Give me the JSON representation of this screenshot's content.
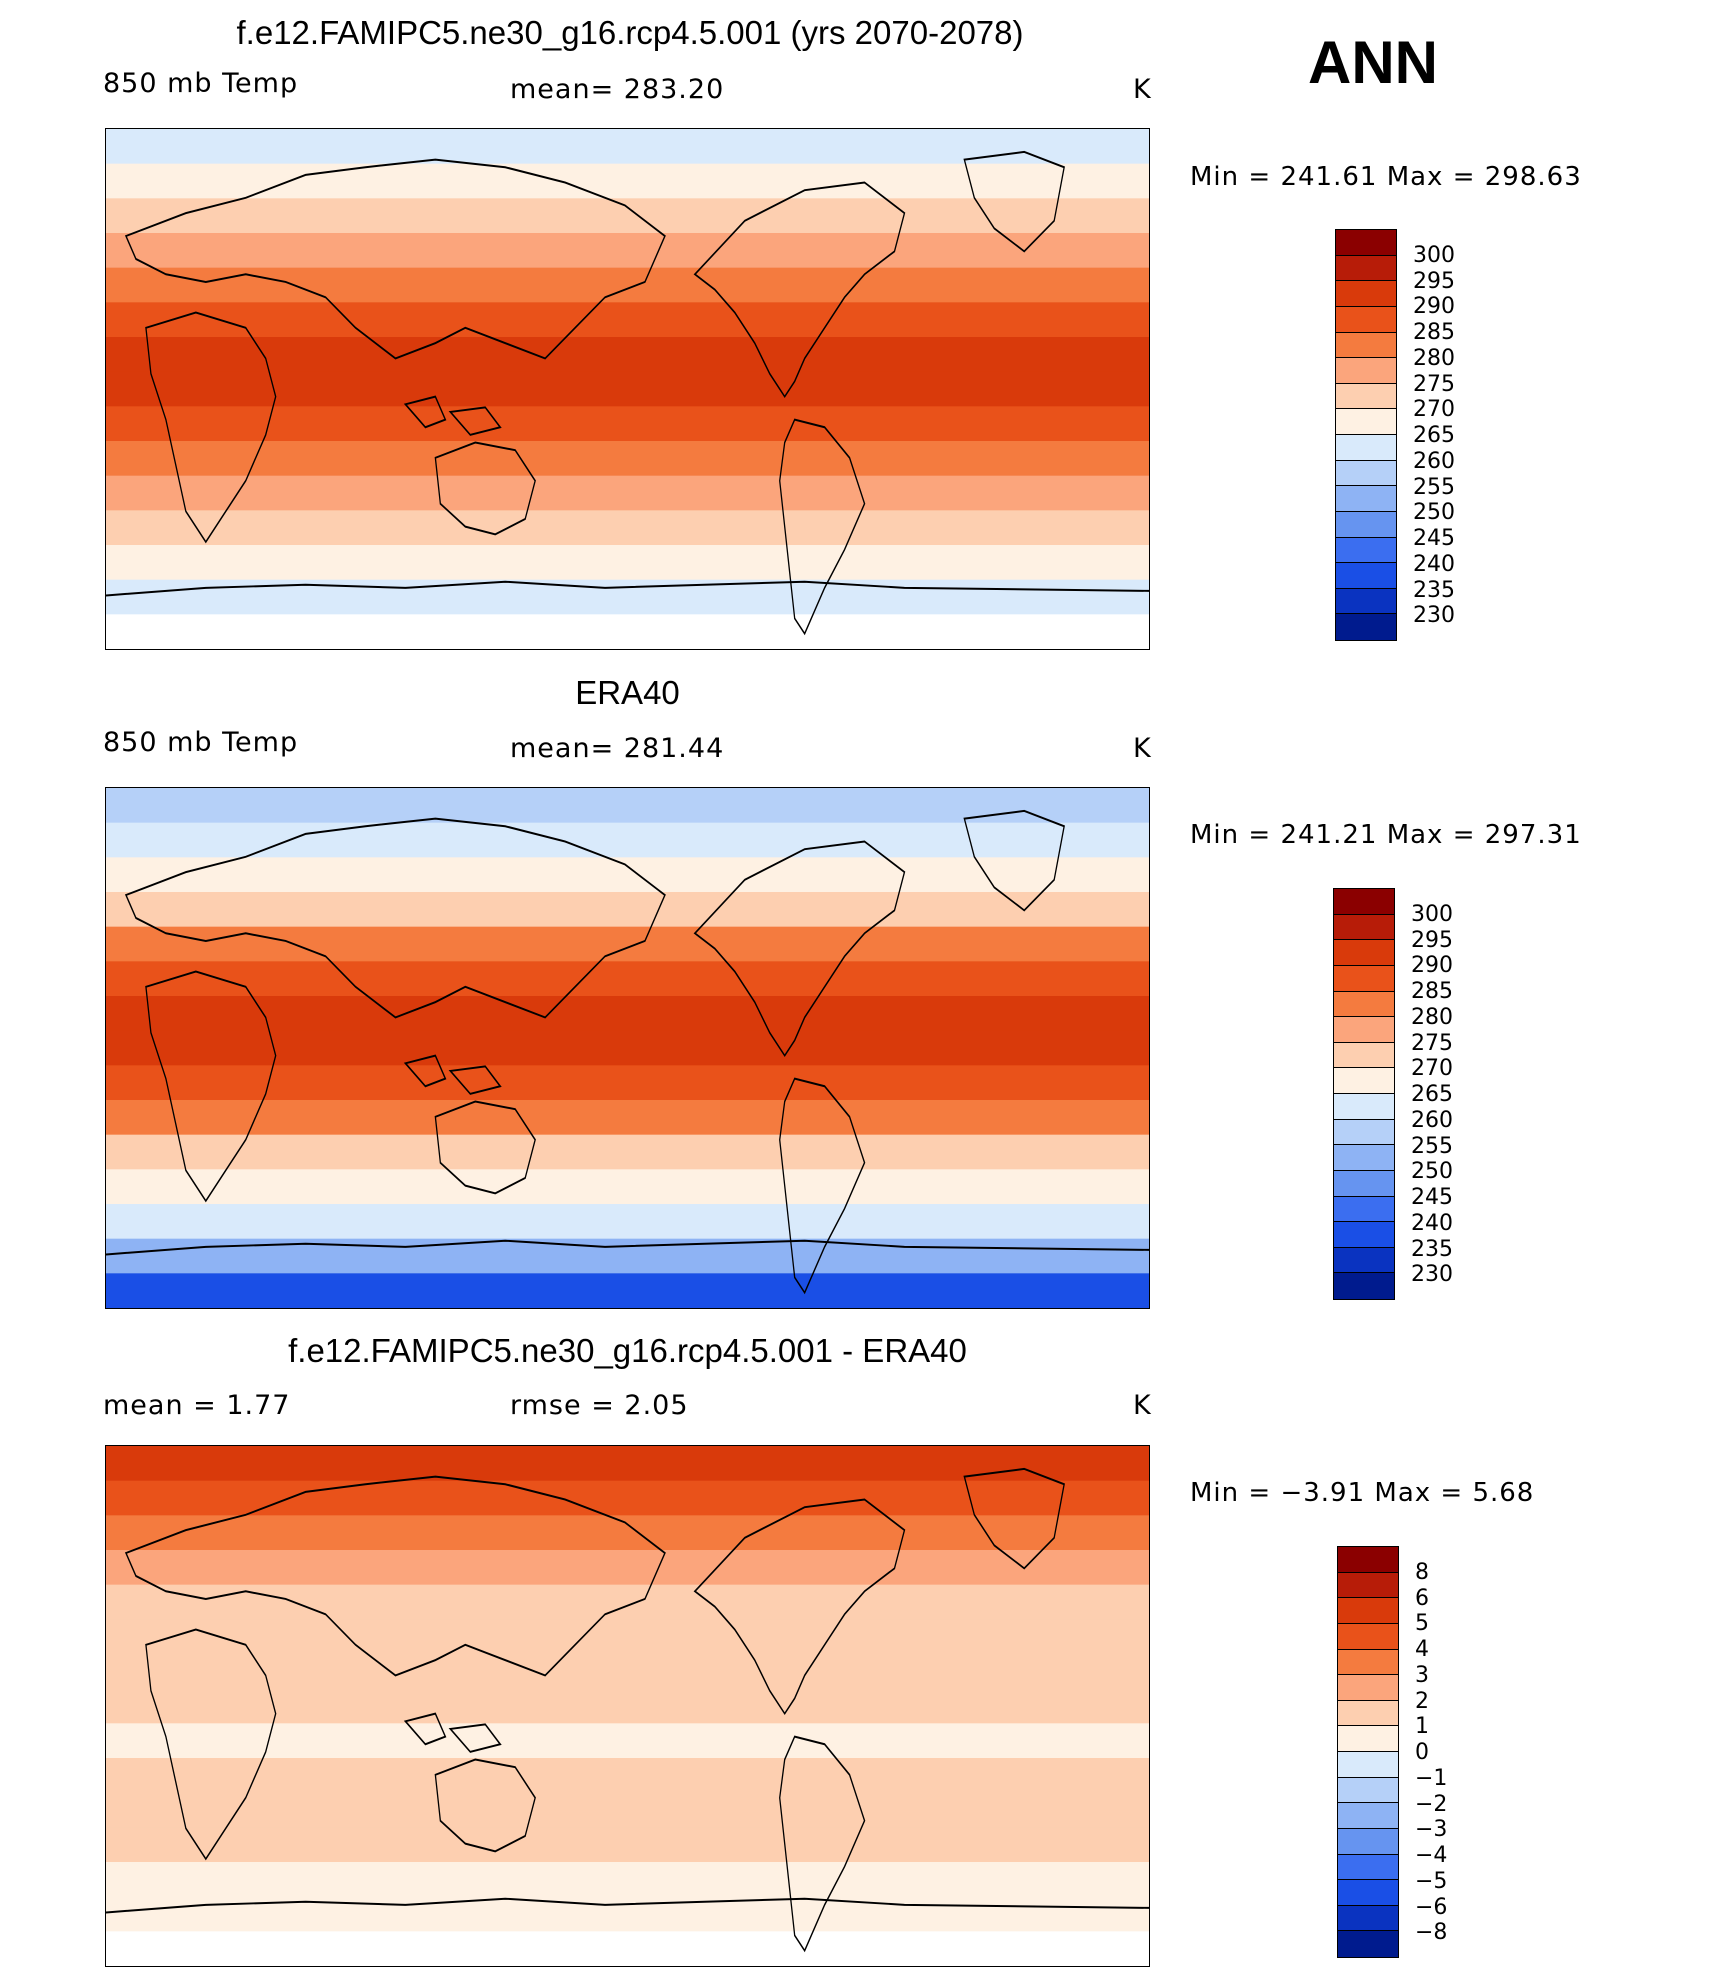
{
  "header": {
    "season": "ANN"
  },
  "panels": [
    {
      "title": "f.e12.FAMIPC5.ne30_g16.rcp4.5.001 (yrs 2070-2078)",
      "left_label": "850 mb Temp",
      "center_label": "mean=  283.20",
      "units": "K",
      "minmax": "Min  =  241.61  Max  =  298.63",
      "colorbar": {
        "colors": [
          "#8b0000",
          "#b71c08",
          "#d93a0b",
          "#e9521a",
          "#f47b3f",
          "#fba57c",
          "#fdcfb0",
          "#fef1e3",
          "#d9eafb",
          "#b5d0f8",
          "#8eb3f4",
          "#6694f0",
          "#3b6ef0",
          "#1a4fe6",
          "#0a33c0",
          "#001b8e"
        ],
        "ticks": [
          "300",
          "295",
          "290",
          "285",
          "280",
          "275",
          "270",
          "265",
          "260",
          "255",
          "250",
          "245",
          "240",
          "235",
          "230"
        ]
      },
      "bands": [
        "#d9eafb",
        "#fef1e3",
        "#fdcfb0",
        "#fba57c",
        "#f47b3f",
        "#e9521a",
        "#d93a0b",
        "#d93a0b",
        "#e9521a",
        "#f47b3f",
        "#fba57c",
        "#fdcfb0",
        "#fef1e3",
        "#d9eafb",
        "#ffffff"
      ]
    },
    {
      "title": "ERA40",
      "left_label": "850 mb Temp",
      "center_label": "mean=  281.44",
      "units": "K",
      "minmax": "Min  =  241.21  Max  =  297.31",
      "colorbar": {
        "colors": [
          "#8b0000",
          "#b71c08",
          "#d93a0b",
          "#e9521a",
          "#f47b3f",
          "#fba57c",
          "#fdcfb0",
          "#fef1e3",
          "#d9eafb",
          "#b5d0f8",
          "#8eb3f4",
          "#6694f0",
          "#3b6ef0",
          "#1a4fe6",
          "#0a33c0",
          "#001b8e"
        ],
        "ticks": [
          "300",
          "295",
          "290",
          "285",
          "280",
          "275",
          "270",
          "265",
          "260",
          "255",
          "250",
          "245",
          "240",
          "235",
          "230"
        ]
      },
      "bands": [
        "#b5d0f8",
        "#d9eafb",
        "#fef1e3",
        "#fdcfb0",
        "#f47b3f",
        "#e9521a",
        "#d93a0b",
        "#d93a0b",
        "#e9521a",
        "#f47b3f",
        "#fdcfb0",
        "#fef1e3",
        "#d9eafb",
        "#8eb3f4",
        "#1a4fe6"
      ]
    },
    {
      "title": "f.e12.FAMIPC5.ne30_g16.rcp4.5.001 - ERA40",
      "left_label": "mean  =      1.77",
      "center_label": "rmse  =     2.05",
      "units": "K",
      "minmax": "Min  =   −3.91  Max  =      5.68",
      "colorbar": {
        "colors": [
          "#8b0000",
          "#b71c08",
          "#d93a0b",
          "#e9521a",
          "#f47b3f",
          "#fba57c",
          "#fdcfb0",
          "#fef1e3",
          "#d9eafb",
          "#b5d0f8",
          "#8eb3f4",
          "#6694f0",
          "#3b6ef0",
          "#1a4fe6",
          "#0a33c0",
          "#001b8e"
        ],
        "ticks": [
          "8",
          "6",
          "5",
          "4",
          "3",
          "2",
          "1",
          "0",
          "−1",
          "−2",
          "−3",
          "−4",
          "−5",
          "−6",
          "−8"
        ]
      },
      "bands": [
        "#d93a0b",
        "#e9521a",
        "#f47b3f",
        "#fba57c",
        "#fdcfb0",
        "#fdcfb0",
        "#fdcfb0",
        "#fdcfb0",
        "#fef1e3",
        "#fdcfb0",
        "#fdcfb0",
        "#fdcfb0",
        "#fef1e3",
        "#fef1e3",
        "#ffffff"
      ]
    }
  ]
}
